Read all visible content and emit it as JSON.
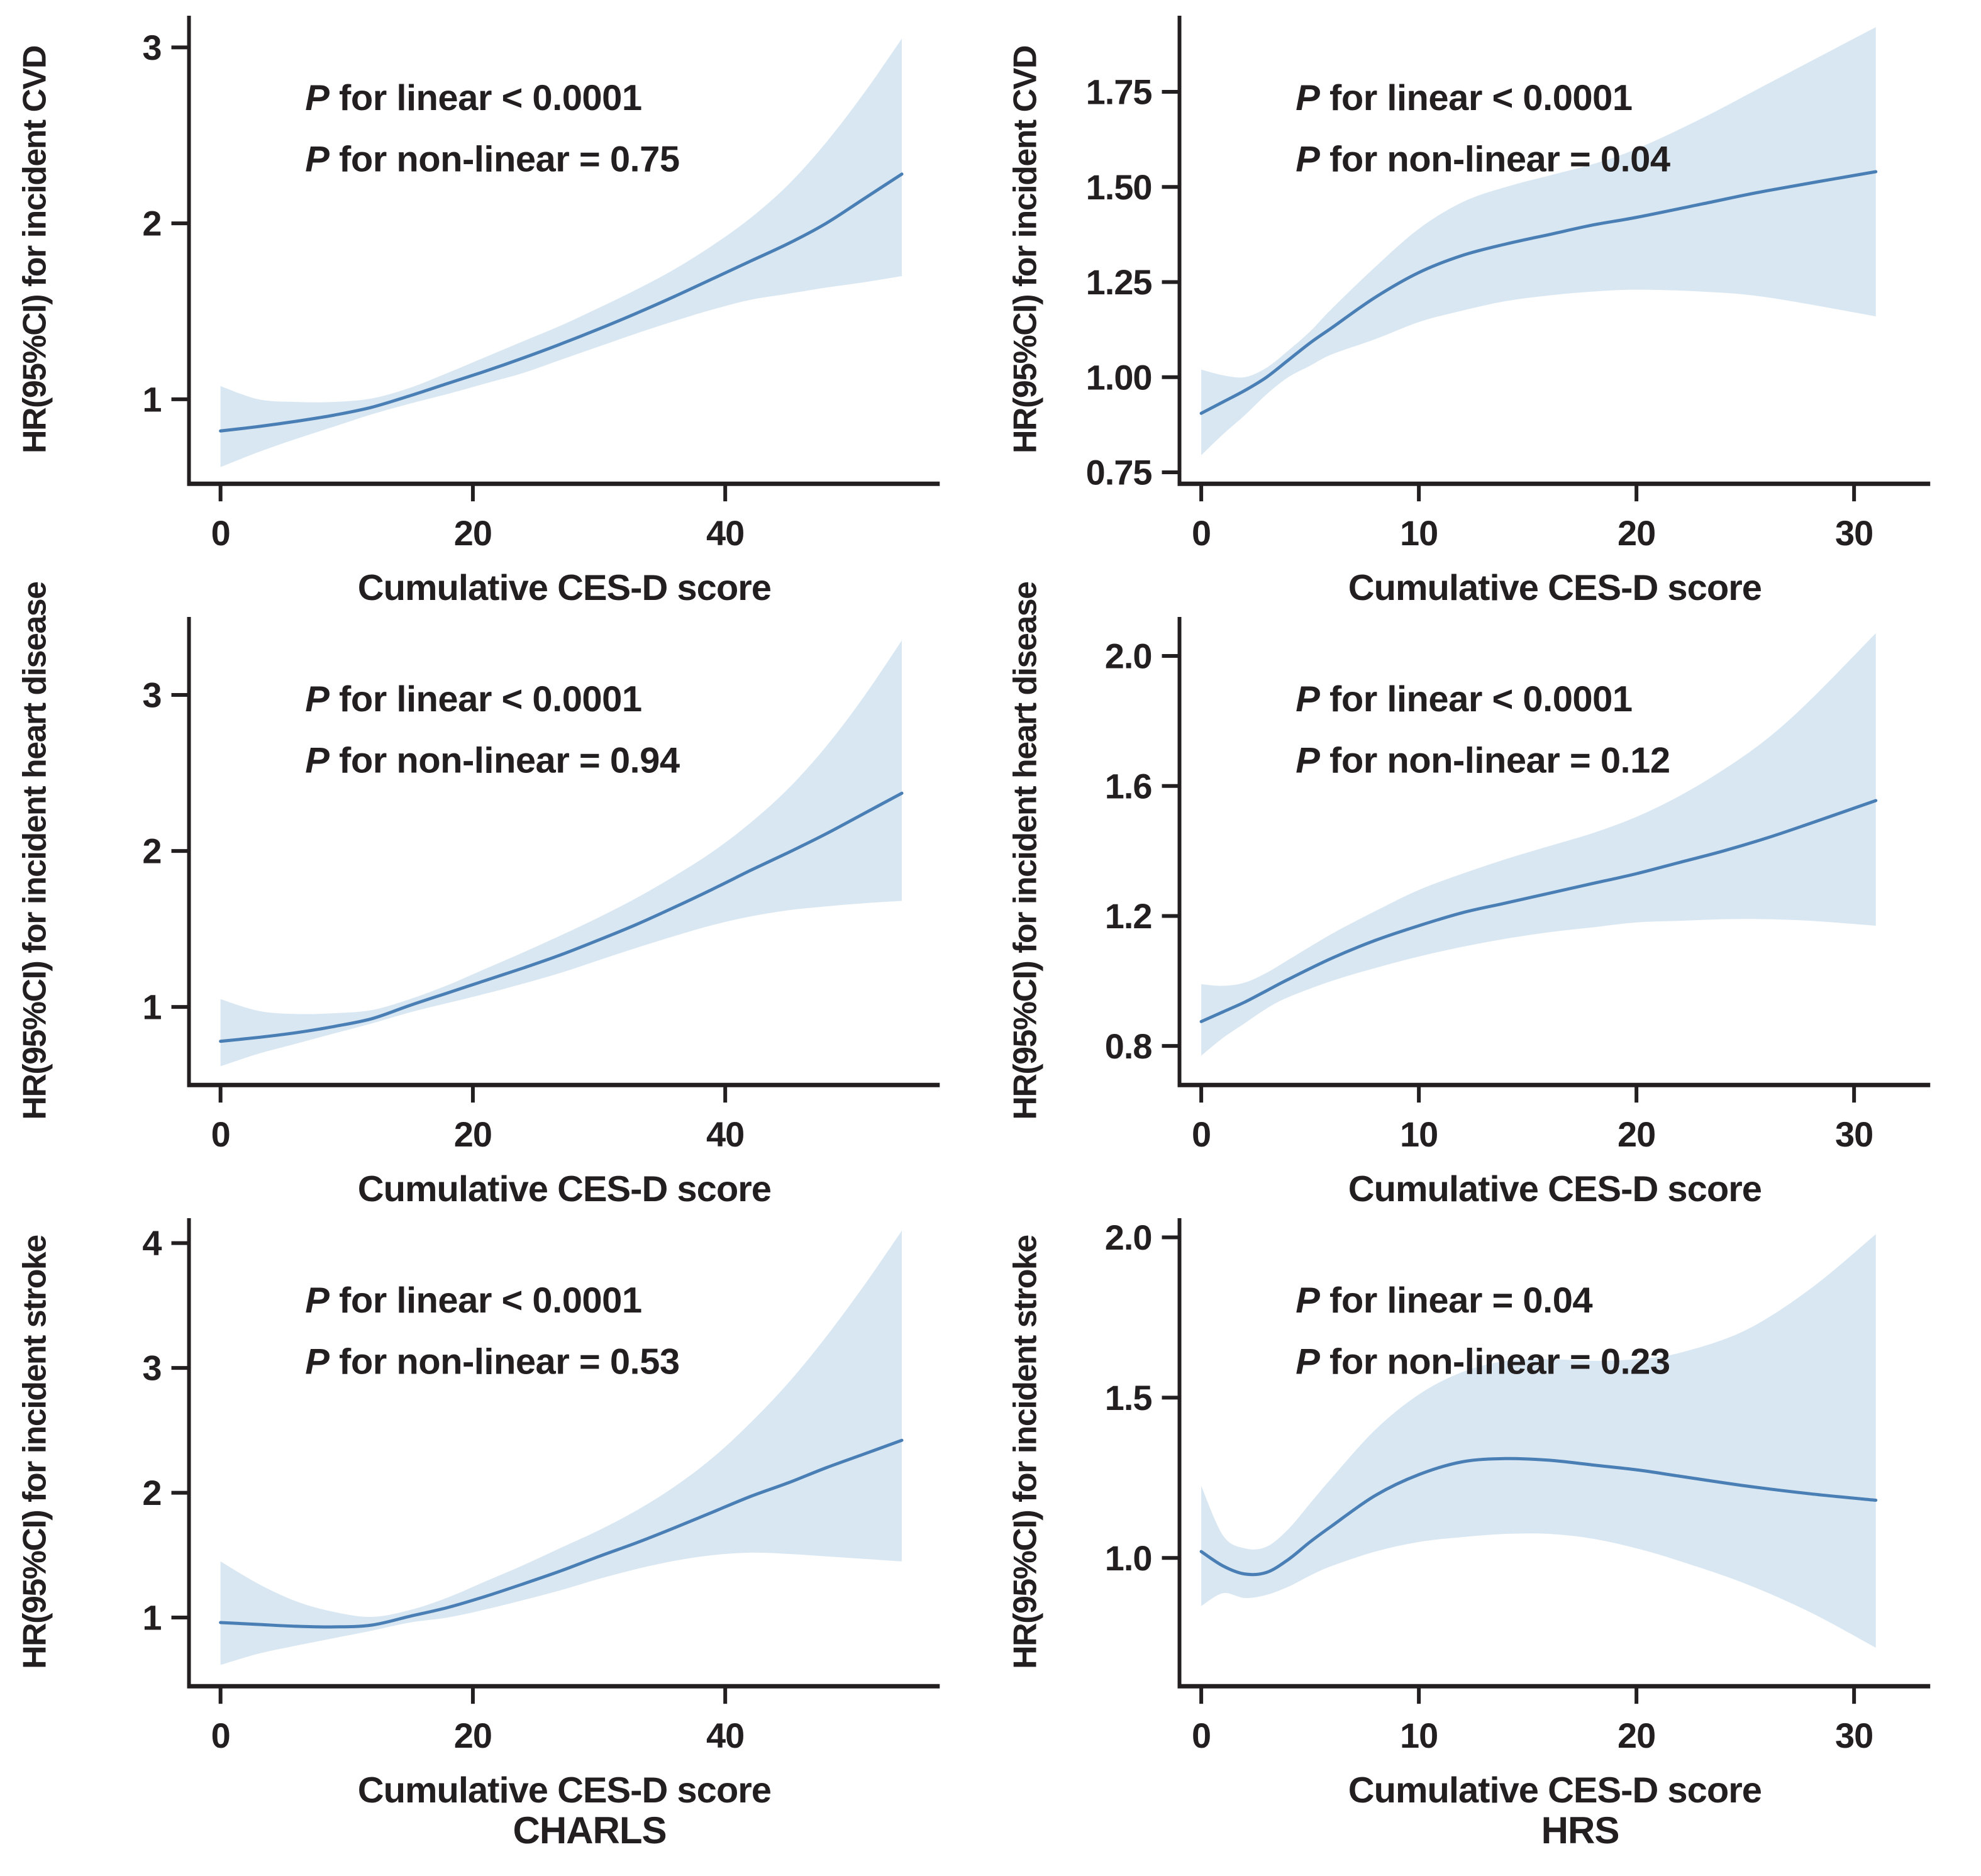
{
  "colors": {
    "line": "#4a7fb5",
    "band": "#d9e7f2",
    "axis": "#231f20",
    "text": "#231f20",
    "background": "#ffffff"
  },
  "footer": {
    "left": "CHARLS",
    "right": "HRS"
  },
  "chart_data": [
    {
      "type": "line",
      "panel": "charls-cvd",
      "ylabel": "HR(95%CI) for incident CVD",
      "xlabel": "Cumulative CES-D score",
      "annotations": [
        "P for linear < 0.0001",
        "P for non-linear = 0.75"
      ],
      "legend": "none",
      "grid": "off",
      "xlim": [
        -2.5,
        57
      ],
      "ylim": [
        0.52,
        3.18
      ],
      "xticks": [
        0,
        20,
        40
      ],
      "xtick_labels": [
        "0",
        "20",
        "40"
      ],
      "yticks": [
        1,
        2,
        3
      ],
      "ytick_labels": [
        "1",
        "2",
        "3"
      ],
      "x": [
        0,
        3,
        6,
        9,
        12,
        15,
        18,
        21,
        24,
        27,
        30,
        33,
        36,
        39,
        42,
        45,
        48,
        51,
        54
      ],
      "y": [
        0.82,
        0.845,
        0.875,
        0.91,
        0.955,
        1.02,
        1.09,
        1.16,
        1.235,
        1.315,
        1.4,
        1.49,
        1.585,
        1.685,
        1.785,
        1.885,
        2.0,
        2.14,
        2.28
      ],
      "lo": [
        0.615,
        0.7,
        0.775,
        0.845,
        0.915,
        0.975,
        1.03,
        1.09,
        1.15,
        1.225,
        1.3,
        1.375,
        1.445,
        1.51,
        1.565,
        1.6,
        1.635,
        1.665,
        1.7
      ],
      "hi": [
        1.075,
        1.0,
        0.985,
        0.985,
        1.005,
        1.065,
        1.15,
        1.24,
        1.33,
        1.42,
        1.52,
        1.625,
        1.74,
        1.875,
        2.03,
        2.22,
        2.46,
        2.74,
        3.05
      ]
    },
    {
      "type": "line",
      "panel": "hrs-cvd",
      "ylabel": "HR(95%CI) for incident CVD",
      "xlabel": "Cumulative CES-D score",
      "annotations": [
        "P for linear < 0.0001",
        "P for non-linear = 0.04"
      ],
      "legend": "none",
      "grid": "off",
      "xlim": [
        -1,
        33.5
      ],
      "ylim": [
        0.72,
        1.95
      ],
      "xticks": [
        0,
        10,
        20,
        30
      ],
      "xtick_labels": [
        "0",
        "10",
        "20",
        "30"
      ],
      "yticks": [
        0.75,
        1.0,
        1.25,
        1.5,
        1.75
      ],
      "ytick_labels": [
        "0.75",
        "1.00",
        "1.25",
        "1.50",
        "1.75"
      ],
      "x": [
        0,
        1,
        2,
        3,
        4,
        5,
        6,
        8,
        10,
        12,
        14,
        16,
        18,
        20,
        23,
        26,
        31
      ],
      "y": [
        0.905,
        0.935,
        0.965,
        1.0,
        1.045,
        1.09,
        1.13,
        1.21,
        1.275,
        1.32,
        1.35,
        1.375,
        1.4,
        1.42,
        1.455,
        1.49,
        1.54
      ],
      "lo": [
        0.795,
        0.85,
        0.9,
        0.955,
        1.0,
        1.03,
        1.06,
        1.1,
        1.145,
        1.175,
        1.2,
        1.215,
        1.225,
        1.23,
        1.225,
        1.21,
        1.16
      ],
      "hi": [
        1.02,
        1.005,
        1.0,
        1.025,
        1.07,
        1.12,
        1.18,
        1.29,
        1.39,
        1.46,
        1.5,
        1.53,
        1.56,
        1.6,
        1.68,
        1.77,
        1.92
      ]
    },
    {
      "type": "line",
      "panel": "charls-heart-disease",
      "ylabel": "HR(95%CI) for incident heart disease",
      "xlabel": "Cumulative CES-D score",
      "annotations": [
        "P for linear < 0.0001",
        "P for non-linear = 0.94"
      ],
      "legend": "none",
      "grid": "off",
      "xlim": [
        -2.5,
        57
      ],
      "ylim": [
        0.5,
        3.5
      ],
      "xticks": [
        0,
        20,
        40
      ],
      "xtick_labels": [
        "0",
        "20",
        "40"
      ],
      "yticks": [
        1,
        2,
        3
      ],
      "ytick_labels": [
        "1",
        "2",
        "3"
      ],
      "x": [
        0,
        3,
        6,
        9,
        12,
        15,
        18,
        21,
        24,
        27,
        30,
        33,
        36,
        39,
        42,
        45,
        48,
        51,
        54
      ],
      "y": [
        0.78,
        0.805,
        0.835,
        0.875,
        0.925,
        1.01,
        1.09,
        1.17,
        1.25,
        1.335,
        1.43,
        1.53,
        1.64,
        1.755,
        1.875,
        1.99,
        2.11,
        2.24,
        2.37
      ],
      "lo": [
        0.62,
        0.7,
        0.765,
        0.83,
        0.895,
        0.965,
        1.025,
        1.085,
        1.15,
        1.22,
        1.3,
        1.38,
        1.455,
        1.525,
        1.58,
        1.62,
        1.645,
        1.665,
        1.68
      ],
      "hi": [
        1.05,
        0.975,
        0.955,
        0.96,
        0.98,
        1.05,
        1.14,
        1.245,
        1.35,
        1.46,
        1.575,
        1.7,
        1.84,
        1.995,
        2.18,
        2.4,
        2.67,
        2.99,
        3.35
      ]
    },
    {
      "type": "line",
      "panel": "hrs-heart-disease",
      "ylabel": "HR(95%CI) for incident heart disease",
      "xlabel": "Cumulative CES-D score",
      "annotations": [
        "P for linear < 0.0001",
        "P for non-linear = 0.12"
      ],
      "legend": "none",
      "grid": "off",
      "xlim": [
        -1,
        33.5
      ],
      "ylim": [
        0.68,
        2.12
      ],
      "xticks": [
        0,
        10,
        20,
        30
      ],
      "xtick_labels": [
        "0",
        "10",
        "20",
        "30"
      ],
      "yticks": [
        0.8,
        1.2,
        1.6,
        2.0
      ],
      "ytick_labels": [
        "0.8",
        "1.2",
        "1.6",
        "2.0"
      ],
      "x": [
        0,
        1,
        2,
        3,
        4,
        6,
        8,
        10,
        12,
        14,
        16,
        18,
        20,
        22,
        24,
        26,
        28,
        31
      ],
      "y": [
        0.875,
        0.905,
        0.935,
        0.97,
        1.005,
        1.07,
        1.125,
        1.17,
        1.21,
        1.24,
        1.27,
        1.3,
        1.33,
        1.365,
        1.4,
        1.44,
        1.485,
        1.555
      ],
      "lo": [
        0.77,
        0.825,
        0.87,
        0.915,
        0.95,
        1.0,
        1.04,
        1.075,
        1.105,
        1.13,
        1.15,
        1.165,
        1.18,
        1.185,
        1.19,
        1.19,
        1.185,
        1.17
      ],
      "hi": [
        0.99,
        0.985,
        0.995,
        1.025,
        1.065,
        1.145,
        1.215,
        1.28,
        1.33,
        1.375,
        1.415,
        1.455,
        1.505,
        1.57,
        1.65,
        1.745,
        1.865,
        2.07
      ]
    },
    {
      "type": "line",
      "panel": "charls-stroke",
      "ylabel": "HR(95%CI) for incident stroke",
      "xlabel": "Cumulative CES-D score",
      "annotations": [
        "P for linear < 0.0001",
        "P for non-linear = 0.53"
      ],
      "legend": "none",
      "grid": "off",
      "xlim": [
        -2.5,
        57
      ],
      "ylim": [
        0.45,
        4.2
      ],
      "xticks": [
        0,
        20,
        40
      ],
      "xtick_labels": [
        "0",
        "20",
        "40"
      ],
      "yticks": [
        1,
        2,
        3,
        4
      ],
      "ytick_labels": [
        "1",
        "2",
        "3",
        "4"
      ],
      "x": [
        0,
        3,
        6,
        9,
        12,
        15,
        18,
        21,
        24,
        27,
        30,
        33,
        36,
        39,
        42,
        45,
        48,
        51,
        54
      ],
      "y": [
        0.96,
        0.945,
        0.93,
        0.925,
        0.94,
        1.01,
        1.08,
        1.17,
        1.27,
        1.375,
        1.49,
        1.6,
        1.72,
        1.845,
        1.97,
        2.08,
        2.2,
        2.31,
        2.42
      ],
      "lo": [
        0.62,
        0.71,
        0.775,
        0.835,
        0.895,
        0.96,
        1.0,
        1.065,
        1.14,
        1.22,
        1.31,
        1.39,
        1.455,
        1.5,
        1.52,
        1.51,
        1.49,
        1.47,
        1.45
      ],
      "hi": [
        1.45,
        1.27,
        1.13,
        1.045,
        1.005,
        1.06,
        1.16,
        1.29,
        1.42,
        1.56,
        1.7,
        1.86,
        2.05,
        2.28,
        2.56,
        2.88,
        3.25,
        3.66,
        4.1
      ]
    },
    {
      "type": "line",
      "panel": "hrs-stroke",
      "ylabel": "HR(95%CI) for incident stroke",
      "xlabel": "Cumulative CES-D score",
      "annotations": [
        "P for linear = 0.04",
        "P for non-linear = 0.23"
      ],
      "legend": "none",
      "grid": "off",
      "xlim": [
        -1,
        33.5
      ],
      "ylim": [
        0.6,
        2.06
      ],
      "xticks": [
        0,
        10,
        20,
        30
      ],
      "xtick_labels": [
        "0",
        "10",
        "20",
        "30"
      ],
      "yticks": [
        1.0,
        1.5,
        2.0
      ],
      "ytick_labels": [
        "1.0",
        "1.5",
        "2.0"
      ],
      "x": [
        0,
        1,
        2,
        3,
        4,
        5,
        6,
        8,
        10,
        12,
        14,
        16,
        18,
        20,
        22,
        25,
        28,
        31
      ],
      "y": [
        1.02,
        0.975,
        0.95,
        0.955,
        0.995,
        1.05,
        1.1,
        1.195,
        1.26,
        1.3,
        1.31,
        1.305,
        1.29,
        1.275,
        1.255,
        1.225,
        1.2,
        1.18
      ],
      "lo": [
        0.85,
        0.89,
        0.875,
        0.885,
        0.91,
        0.945,
        0.975,
        1.02,
        1.05,
        1.065,
        1.075,
        1.075,
        1.06,
        1.03,
        0.99,
        0.92,
        0.83,
        0.72
      ],
      "hi": [
        1.225,
        1.07,
        1.03,
        1.035,
        1.09,
        1.17,
        1.25,
        1.4,
        1.51,
        1.58,
        1.615,
        1.62,
        1.615,
        1.62,
        1.64,
        1.71,
        1.84,
        2.01
      ]
    }
  ]
}
